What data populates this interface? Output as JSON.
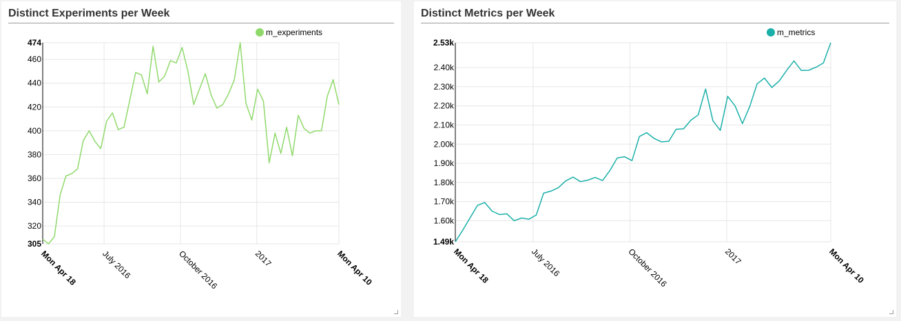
{
  "panels": [
    {
      "title": "Distinct Experiments per Week",
      "chart_data": {
        "type": "line",
        "title": "Distinct Experiments per Week",
        "xlabel": "",
        "ylabel": "",
        "x_start": "2016-04-18",
        "x_end": "2017-04-10",
        "x_ticks": [
          {
            "label": "Mon Apr 18",
            "date": "2016-04-18",
            "bold": true
          },
          {
            "label": "July 2016",
            "date": "2016-07-01",
            "bold": false
          },
          {
            "label": "October 2016",
            "date": "2016-10-01",
            "bold": false
          },
          {
            "label": "2017",
            "date": "2017-01-01",
            "bold": false
          },
          {
            "label": "Mon Apr 10",
            "date": "2017-04-10",
            "bold": true
          }
        ],
        "y_ticks": [
          {
            "label": "305",
            "value": 305,
            "bold": true
          },
          {
            "label": "320",
            "value": 320,
            "bold": false
          },
          {
            "label": "340",
            "value": 340,
            "bold": false
          },
          {
            "label": "360",
            "value": 360,
            "bold": false
          },
          {
            "label": "380",
            "value": 380,
            "bold": false
          },
          {
            "label": "400",
            "value": 400,
            "bold": false
          },
          {
            "label": "420",
            "value": 420,
            "bold": false
          },
          {
            "label": "440",
            "value": 440,
            "bold": false
          },
          {
            "label": "460",
            "value": 460,
            "bold": false
          },
          {
            "label": "474",
            "value": 474,
            "bold": true
          }
        ],
        "ylim": [
          305,
          474
        ],
        "grid": true,
        "legend_position": "top-right",
        "series": [
          {
            "name": "m_experiments",
            "color": "#8fd96b",
            "values": [
              309,
              305,
              311,
              346,
              362,
              364,
              368,
              392,
              400,
              391,
              385,
              408,
              415,
              401,
              403,
              426,
              449,
              447,
              431,
              471,
              441,
              446,
              459,
              457,
              470,
              450,
              422,
              435,
              448,
              430,
              419,
              422,
              431,
              443,
              474,
              423,
              409,
              435,
              425,
              373,
              398,
              381,
              403,
              379,
              413,
              402,
              398,
              400,
              400,
              429,
              443,
              422
            ]
          }
        ]
      }
    },
    {
      "title": "Distinct Metrics per Week",
      "chart_data": {
        "type": "line",
        "title": "Distinct Metrics per Week",
        "xlabel": "",
        "ylabel": "",
        "x_start": "2016-04-18",
        "x_end": "2017-04-10",
        "x_ticks": [
          {
            "label": "Mon Apr 18",
            "date": "2016-04-18",
            "bold": true
          },
          {
            "label": "July 2016",
            "date": "2016-07-01",
            "bold": false
          },
          {
            "label": "October 2016",
            "date": "2016-10-01",
            "bold": false
          },
          {
            "label": "2017",
            "date": "2017-01-01",
            "bold": false
          },
          {
            "label": "Mon Apr 10",
            "date": "2017-04-10",
            "bold": true
          }
        ],
        "y_ticks": [
          {
            "label": "1.49k",
            "value": 1490,
            "bold": true
          },
          {
            "label": "1.60k",
            "value": 1600,
            "bold": false
          },
          {
            "label": "1.70k",
            "value": 1700,
            "bold": false
          },
          {
            "label": "1.80k",
            "value": 1800,
            "bold": false
          },
          {
            "label": "1.90k",
            "value": 1900,
            "bold": false
          },
          {
            "label": "2.00k",
            "value": 2000,
            "bold": false
          },
          {
            "label": "2.10k",
            "value": 2100,
            "bold": false
          },
          {
            "label": "2.20k",
            "value": 2200,
            "bold": false
          },
          {
            "label": "2.30k",
            "value": 2300,
            "bold": false
          },
          {
            "label": "2.40k",
            "value": 2400,
            "bold": false
          },
          {
            "label": "2.53k",
            "value": 2530,
            "bold": true
          }
        ],
        "ylim": [
          1490,
          2530
        ],
        "grid": true,
        "legend_position": "top-right",
        "series": [
          {
            "name": "m_metrics",
            "color": "#1aafa8",
            "values": [
              1490,
              1550,
              1615,
              1680,
              1695,
              1650,
              1632,
              1636,
              1600,
              1614,
              1608,
              1630,
              1744,
              1755,
              1773,
              1808,
              1828,
              1804,
              1812,
              1826,
              1810,
              1862,
              1928,
              1934,
              1914,
              2040,
              2060,
              2030,
              2012,
              2015,
              2078,
              2080,
              2125,
              2153,
              2288,
              2122,
              2072,
              2250,
              2200,
              2107,
              2198,
              2315,
              2345,
              2296,
              2330,
              2385,
              2435,
              2385,
              2386,
              2402,
              2424,
              2530
            ]
          }
        ]
      }
    }
  ]
}
